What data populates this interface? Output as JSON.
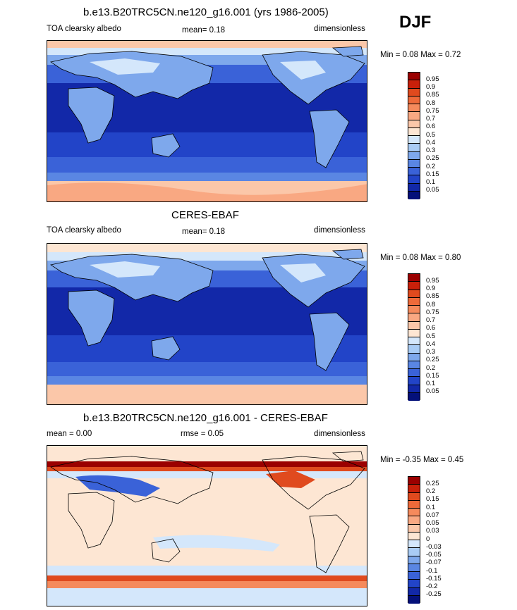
{
  "season": "DJF",
  "panels": [
    {
      "title": "b.e13.B20TRC5CN.ne120_g16.001 (yrs 1986-2005)",
      "left_label": "TOA clearsky albedo",
      "mid_label": "mean=  0.18",
      "right_label": "dimensionless",
      "minmax": "Min =  0.08 Max =  0.72",
      "colorbar_labels": [
        "0.95",
        "0.9",
        "0.85",
        "0.8",
        "0.75",
        "0.7",
        "0.6",
        "0.5",
        "0.4",
        "0.3",
        "0.25",
        "0.2",
        "0.15",
        "0.1",
        "0.05"
      ],
      "colorbar_colors": [
        "#9b0000",
        "#c8200a",
        "#e04a1e",
        "#ee6a3a",
        "#f58a5c",
        "#f9a882",
        "#fbc7a9",
        "#fde6d3",
        "#d4e7fb",
        "#a9ccf5",
        "#7ea8ec",
        "#5a86e3",
        "#3a62d8",
        "#2244c8",
        "#1228a8",
        "#04107a"
      ]
    },
    {
      "title": "CERES-EBAF",
      "left_label": "TOA clearsky albedo",
      "mid_label": "mean=  0.18",
      "right_label": "dimensionless",
      "minmax": "Min =  0.08 Max =  0.80",
      "colorbar_labels": [
        "0.95",
        "0.9",
        "0.85",
        "0.8",
        "0.75",
        "0.7",
        "0.6",
        "0.5",
        "0.4",
        "0.3",
        "0.25",
        "0.2",
        "0.15",
        "0.1",
        "0.05"
      ],
      "colorbar_colors": [
        "#9b0000",
        "#c8200a",
        "#e04a1e",
        "#ee6a3a",
        "#f58a5c",
        "#f9a882",
        "#fbc7a9",
        "#fde6d3",
        "#d4e7fb",
        "#a9ccf5",
        "#7ea8ec",
        "#5a86e3",
        "#3a62d8",
        "#2244c8",
        "#1228a8",
        "#04107a"
      ]
    },
    {
      "title": "b.e13.B20TRC5CN.ne120_g16.001 - CERES-EBAF",
      "left_label": "mean =   0.00",
      "mid_label": "rmse =   0.05",
      "right_label": "dimensionless",
      "minmax": "Min = -0.35 Max =   0.45",
      "colorbar_labels": [
        "0.25",
        "0.2",
        "0.15",
        "0.1",
        "0.07",
        "0.05",
        "0.03",
        "0",
        "-0.03",
        "-0.05",
        "-0.07",
        "-0.1",
        "-0.15",
        "-0.2",
        "-0.25"
      ],
      "colorbar_colors": [
        "#9b0000",
        "#c8200a",
        "#e04a1e",
        "#ee6a3a",
        "#f58a5c",
        "#f9a882",
        "#fbc7a9",
        "#fde6d3",
        "#d4e7fb",
        "#a9ccf5",
        "#7ea8ec",
        "#5a86e3",
        "#3a62d8",
        "#2244c8",
        "#1228a8",
        "#04107a"
      ]
    }
  ]
}
